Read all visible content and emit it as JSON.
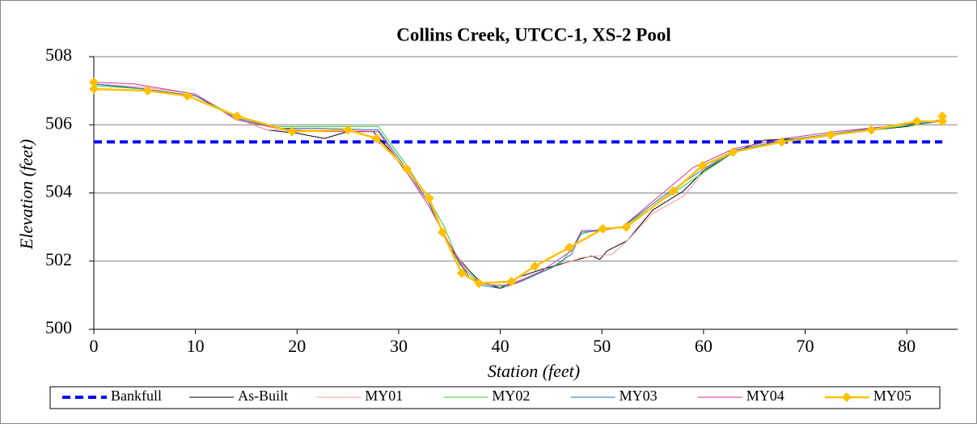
{
  "chart_data": {
    "type": "line",
    "title": "Collins Creek, UTCC-1, XS-2 Pool",
    "x_label": "Station (feet)",
    "y_label": "Elevation (feet)",
    "xlim": [
      0,
      85
    ],
    "xticks": [
      0,
      10,
      20,
      30,
      40,
      50,
      60,
      70,
      80
    ],
    "ylim": [
      500,
      508
    ],
    "yticks": [
      500,
      502,
      504,
      506,
      508
    ],
    "grid": true,
    "legend": "bottom",
    "series": [
      {
        "name": "Bankfull",
        "color": "#0000ff",
        "dash": true,
        "x": [
          0,
          83.5
        ],
        "values": [
          505.5,
          505.5
        ]
      },
      {
        "name": "As-Built",
        "color": "#000000",
        "x": [
          0,
          5,
          10,
          14,
          17,
          20,
          22.7,
          25,
          27.5,
          29,
          30.8,
          33,
          35,
          37,
          38,
          40,
          42,
          44,
          47,
          49,
          49.8,
          50.5,
          52.5,
          55,
          58,
          60,
          63,
          66,
          70,
          75,
          80,
          83.5
        ],
        "values": [
          507.2,
          507.05,
          506.85,
          506.2,
          505.85,
          505.75,
          505.6,
          505.8,
          505.8,
          505.3,
          504.6,
          503.7,
          502.4,
          501.7,
          501.4,
          501.2,
          501.55,
          501.75,
          502.0,
          502.15,
          502.05,
          502.3,
          502.6,
          503.5,
          504.05,
          504.65,
          505.2,
          505.55,
          505.6,
          505.8,
          505.95,
          506.15
        ]
      },
      {
        "name": "MY01",
        "color": "#ff9999",
        "x": [
          0,
          5,
          10,
          14,
          17,
          20,
          25,
          28,
          30.8,
          33,
          35,
          37,
          38,
          40,
          42,
          45,
          48,
          51,
          52.5,
          55,
          58,
          60,
          63,
          67,
          72,
          77,
          83.5
        ],
        "values": [
          507.2,
          507.1,
          506.9,
          506.2,
          505.85,
          505.85,
          505.85,
          505.8,
          504.6,
          503.7,
          502.5,
          501.6,
          501.35,
          501.25,
          501.45,
          501.8,
          502.1,
          502.2,
          502.6,
          503.4,
          503.9,
          504.6,
          505.2,
          505.5,
          505.7,
          505.9,
          506.15
        ]
      },
      {
        "name": "MY02",
        "color": "#33cc33",
        "x": [
          0,
          5,
          10,
          14,
          18,
          22,
          28,
          30.8,
          33,
          34.5,
          36,
          38,
          40,
          42,
          46,
          48,
          50,
          52,
          56,
          60,
          63,
          68,
          73,
          78,
          83.5
        ],
        "values": [
          507.15,
          507.05,
          506.85,
          506.25,
          505.95,
          505.95,
          505.95,
          504.8,
          503.8,
          503.0,
          501.9,
          501.35,
          501.25,
          501.4,
          501.95,
          502.8,
          502.95,
          503.0,
          503.8,
          504.6,
          505.2,
          505.5,
          505.7,
          505.9,
          506.1
        ]
      },
      {
        "name": "MY03",
        "color": "#1f6fb4",
        "x": [
          0,
          5,
          10,
          14,
          18,
          22,
          28,
          30.8,
          33,
          35,
          37,
          38,
          40,
          42,
          45,
          47,
          48,
          50,
          52,
          56,
          60,
          63,
          68,
          73,
          78,
          83.5
        ],
        "values": [
          507.2,
          507.05,
          506.85,
          506.2,
          505.9,
          505.9,
          505.85,
          504.7,
          503.7,
          502.4,
          501.5,
          501.3,
          501.2,
          501.4,
          501.8,
          502.2,
          502.85,
          502.9,
          503.0,
          503.9,
          504.7,
          505.25,
          505.55,
          505.75,
          505.95,
          506.1
        ]
      },
      {
        "name": "MY04",
        "color": "#cc3399",
        "x": [
          0,
          4,
          10,
          14,
          18,
          22,
          28,
          30.8,
          33,
          35,
          37,
          39,
          41,
          44,
          47,
          48,
          50,
          52,
          56,
          59,
          63,
          68,
          73,
          78,
          83.5
        ],
        "values": [
          507.25,
          507.2,
          506.9,
          506.15,
          505.9,
          505.8,
          505.8,
          504.6,
          503.6,
          502.5,
          501.5,
          501.3,
          501.3,
          501.7,
          502.3,
          502.9,
          502.9,
          503.0,
          504.0,
          504.75,
          505.3,
          505.6,
          505.8,
          505.95,
          506.15
        ]
      },
      {
        "name": "MY05",
        "color": "#ffc000",
        "marker": "diamond",
        "x": [
          0,
          0,
          5.3,
          9.2,
          14.1,
          19.5,
          25,
          27.8,
          30.8,
          33,
          34.3,
          36.2,
          37.9,
          41.1,
          43.4,
          46.8,
          50.1,
          52.4,
          57,
          59.9,
          62.9,
          67.7,
          72.5,
          76.5,
          81,
          83.5,
          83.5
        ],
        "values": [
          507.25,
          507.05,
          507.0,
          506.85,
          506.25,
          505.8,
          505.85,
          505.6,
          504.7,
          503.85,
          502.85,
          501.65,
          501.35,
          501.4,
          501.85,
          502.4,
          502.95,
          503.0,
          504.05,
          504.8,
          505.2,
          505.5,
          505.7,
          505.85,
          506.1,
          506.1,
          506.25
        ]
      }
    ]
  }
}
